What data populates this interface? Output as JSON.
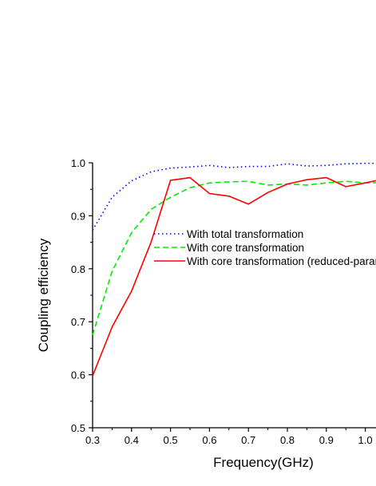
{
  "chart_data": {
    "type": "line",
    "title": "",
    "xlabel": "Frequency(GHz)",
    "ylabel": "Coupling efficiency",
    "xlim": [
      0.3,
      1.05
    ],
    "ylim": [
      0.5,
      1.0
    ],
    "x_ticks": [
      0.3,
      0.4,
      0.5,
      0.6,
      0.7,
      0.8,
      0.9,
      1.0
    ],
    "x_tick_labels": [
      "0.3",
      "0.4",
      "0.5",
      "0.6",
      "0.7",
      "0.8",
      "0.9",
      "1.0"
    ],
    "y_ticks": [
      0.5,
      0.6,
      0.7,
      0.8,
      0.9,
      1.0
    ],
    "y_tick_labels": [
      "0.5",
      "0.6",
      "0.7",
      "0.8",
      "0.9",
      "1.0"
    ],
    "grid": false,
    "legend_position": "center",
    "series": [
      {
        "name": "With total transformation",
        "color": "#0000ff",
        "style": "dotted",
        "x": [
          0.3,
          0.35,
          0.4,
          0.45,
          0.5,
          0.55,
          0.6,
          0.65,
          0.7,
          0.75,
          0.8,
          0.85,
          0.9,
          0.95,
          1.0,
          1.05
        ],
        "y": [
          0.873,
          0.935,
          0.966,
          0.983,
          0.99,
          0.992,
          0.995,
          0.991,
          0.993,
          0.993,
          0.998,
          0.994,
          0.995,
          0.998,
          0.999,
          0.999
        ]
      },
      {
        "name": "With core transformation",
        "color": "#00ee00",
        "style": "dashed",
        "x": [
          0.3,
          0.35,
          0.4,
          0.45,
          0.5,
          0.55,
          0.6,
          0.65,
          0.7,
          0.75,
          0.8,
          0.85,
          0.9,
          0.95,
          1.0,
          1.05
        ],
        "y": [
          0.675,
          0.795,
          0.868,
          0.912,
          0.935,
          0.953,
          0.962,
          0.964,
          0.965,
          0.958,
          0.96,
          0.958,
          0.962,
          0.965,
          0.962,
          0.963
        ]
      },
      {
        "name": "With core transformation (reduced-parameter)",
        "color": "#ff0000",
        "style": "solid",
        "x": [
          0.3,
          0.35,
          0.4,
          0.45,
          0.5,
          0.55,
          0.6,
          0.65,
          0.7,
          0.75,
          0.8,
          0.85,
          0.9,
          0.95,
          1.0,
          1.05
        ],
        "y": [
          0.598,
          0.69,
          0.758,
          0.85,
          0.967,
          0.972,
          0.942,
          0.937,
          0.922,
          0.944,
          0.96,
          0.968,
          0.972,
          0.955,
          0.962,
          0.97
        ]
      }
    ]
  }
}
